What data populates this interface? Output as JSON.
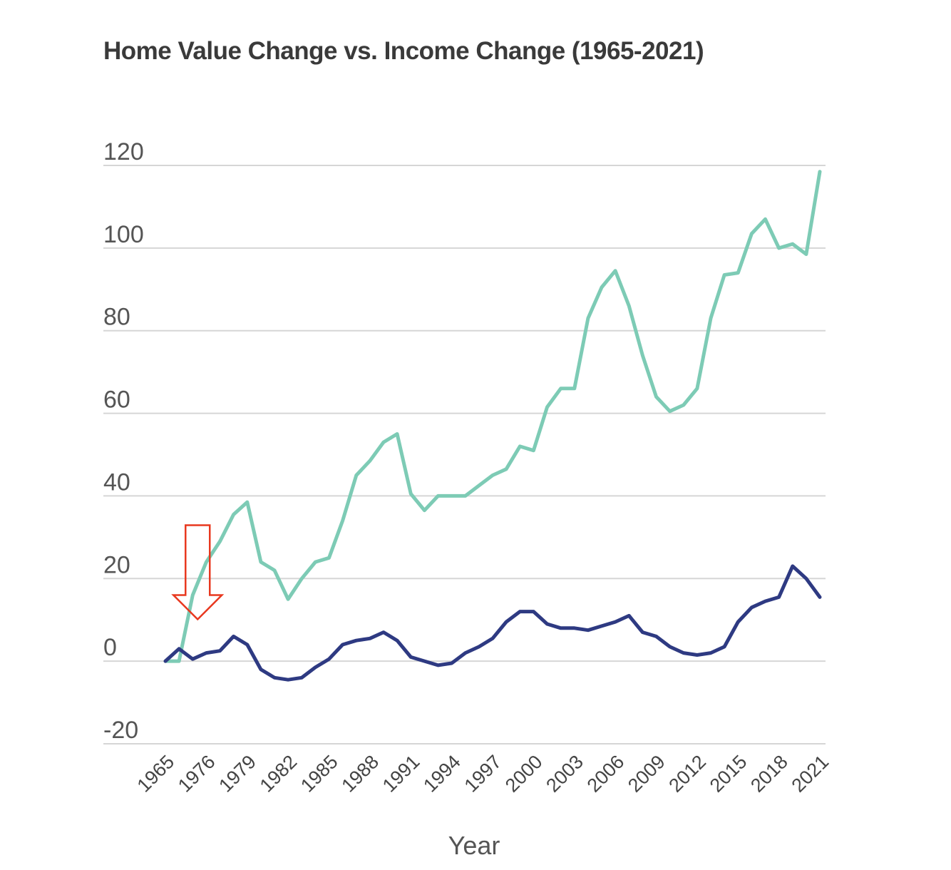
{
  "chart_data": {
    "type": "line",
    "title": "Home Value Change vs. Income Change (1965-2021)",
    "xlabel": "Year",
    "ylabel": "",
    "ylim": [
      -20,
      120
    ],
    "y_ticks": [
      120,
      100,
      80,
      60,
      40,
      20,
      0,
      -20
    ],
    "grid": true,
    "legend": "none",
    "x_tick_labels": [
      "1965",
      "1976",
      "1979",
      "1982",
      "1985",
      "1988",
      "1991",
      "1994",
      "1997",
      "2000",
      "2003",
      "2006",
      "2009",
      "2012",
      "2015",
      "2018",
      "2021"
    ],
    "x_tick_index_step": 3,
    "point_count": 49,
    "series": [
      {
        "color": "#7dcbb5",
        "values": [
          0,
          0,
          16,
          24,
          29,
          35.5,
          38.5,
          24,
          22,
          15,
          20,
          24,
          25,
          34,
          45,
          48.5,
          53,
          55,
          40.5,
          36.5,
          40,
          40,
          40,
          42.5,
          45,
          46.5,
          52,
          51,
          61.5,
          66,
          66,
          83,
          90.5,
          94.5,
          86,
          74,
          64,
          60.5,
          62,
          66,
          83,
          93.5,
          94,
          103.5,
          107,
          100,
          101,
          98.5,
          118.5
        ]
      },
      {
        "color": "#2e3a82",
        "values": [
          0,
          3,
          0.5,
          2,
          2.5,
          6,
          4,
          -2,
          -4,
          -4.5,
          -4,
          -1.5,
          0.5,
          4,
          5,
          5.5,
          7,
          5,
          1,
          0,
          -1,
          -0.5,
          2,
          3.5,
          5.5,
          9.5,
          12,
          12,
          9,
          8,
          8,
          7.5,
          8.5,
          9.5,
          11,
          7,
          6,
          3.5,
          2,
          1.5,
          2,
          3.5,
          9.5,
          13,
          14.5,
          15.5,
          23,
          20,
          15.5
        ]
      }
    ],
    "annotations": [
      {
        "type": "arrow-down",
        "color": "#e8381f",
        "target_index": 2
      }
    ]
  }
}
